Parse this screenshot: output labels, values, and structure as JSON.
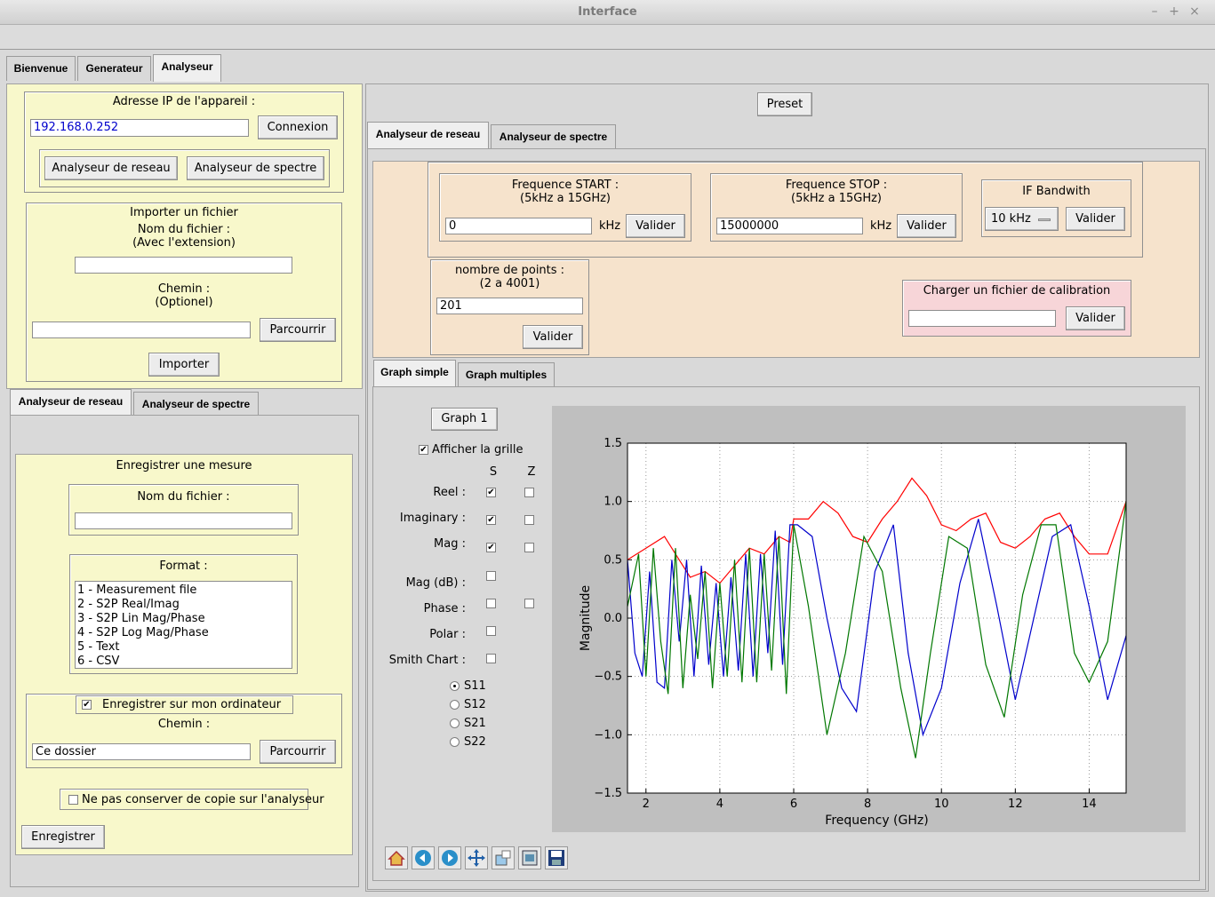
{
  "window": {
    "title": "Interface"
  },
  "main_tabs": [
    "Bienvenue",
    "Generateur",
    "Analyseur"
  ],
  "connection": {
    "label": "Adresse IP de l'appareil :",
    "ip": "192.168.0.252",
    "connect": "Connexion",
    "btn_network": "Analyseur de reseau",
    "btn_spectrum": "Analyseur de spectre"
  },
  "import": {
    "title": "Importer un fichier",
    "name_label": "Nom du fichier :",
    "name_hint": "(Avec l'extension)",
    "path_label": "Chemin :",
    "path_hint": "(Optionel)",
    "browse": "Parcourrir",
    "import_btn": "Importer"
  },
  "left_tabs": [
    "Analyseur de reseau",
    "Analyseur de spectre"
  ],
  "save": {
    "title": "Enregistrer une mesure",
    "name_label": "Nom du fichier :",
    "format_label": "Format :",
    "formats": [
      "1 - Measurement file",
      "2 - S2P Real/Imag",
      "3 - S2P Lin Mag/Phase",
      "4 - S2P Log Mag/Phase",
      "5 - Text",
      "6 - CSV"
    ],
    "save_local": "Enregistrer sur mon ordinateur",
    "path_label": "Chemin :",
    "path_value": "Ce dossier",
    "browse": "Parcourrir",
    "no_copy": "Ne pas conserver de copie sur l'analyseur",
    "save_btn": "Enregistrer"
  },
  "preset": "Preset",
  "right_tabs": [
    "Analyseur de reseau",
    "Analyseur de spectre"
  ],
  "freq_start": {
    "label": "Frequence START :",
    "hint": "(5kHz a 15GHz)",
    "value": "0",
    "unit": "kHz",
    "validate": "Valider"
  },
  "freq_stop": {
    "label": "Frequence STOP :",
    "hint": "(5kHz a 15GHz)",
    "value": "15000000",
    "unit": "kHz",
    "validate": "Valider"
  },
  "if_bw": {
    "label": "IF Bandwith",
    "value": "10 kHz",
    "validate": "Valider"
  },
  "points": {
    "label": "nombre de points :",
    "hint": "(2 a 4001)",
    "value": "201",
    "validate": "Valider"
  },
  "calib": {
    "label": "Charger un fichier de calibration",
    "validate": "Valider"
  },
  "graph_tabs": [
    "Graph simple",
    "Graph multiples"
  ],
  "graph_ctrl": {
    "graph_btn": "Graph 1",
    "grid_label": "Afficher la grille",
    "col_s": "S",
    "col_z": "Z",
    "rows": [
      {
        "label": "Reel :",
        "s": true,
        "z": false,
        "hasZ": true
      },
      {
        "label": "Imaginary :",
        "s": true,
        "z": false,
        "hasZ": true
      },
      {
        "label": "Mag :",
        "s": true,
        "z": false,
        "hasZ": true
      },
      {
        "label": "Mag (dB) :",
        "s": false,
        "hasZ": false
      },
      {
        "label": "Phase :",
        "s": false,
        "z": false,
        "hasZ": true
      },
      {
        "label": "Polar :",
        "s": false,
        "hasZ": false
      },
      {
        "label": "Smith Chart :",
        "s": false,
        "hasZ": false
      }
    ],
    "sparams": [
      "S11",
      "S12",
      "S21",
      "S22"
    ],
    "selected": "S11"
  },
  "chart_data": {
    "type": "line",
    "xlabel": "Frequency (GHz)",
    "ylabel": "Magnitude",
    "xlim": [
      1.5,
      15
    ],
    "ylim": [
      -1.5,
      1.5
    ],
    "xticks": [
      2,
      4,
      6,
      8,
      10,
      12,
      14
    ],
    "yticks": [
      1.5,
      1.0,
      0.5,
      0.0,
      -0.5,
      -1.0,
      -1.5
    ],
    "ytick_labels": [
      "1.5",
      "1.0",
      "0.5",
      "0.0",
      "−0.5",
      "−1.0",
      "−1.5"
    ],
    "grid": true,
    "series": [
      {
        "color": "#ff0000",
        "x": [
          1.5,
          2.0,
          2.5,
          2.8,
          3.2,
          3.6,
          4.0,
          4.4,
          4.8,
          5.2,
          5.6,
          5.9,
          6.0,
          6.4,
          6.8,
          7.2,
          7.6,
          8.0,
          8.4,
          8.8,
          9.2,
          9.6,
          10.0,
          10.4,
          10.8,
          11.2,
          11.6,
          12.0,
          12.4,
          12.8,
          13.2,
          13.6,
          14.0,
          14.5,
          15.0
        ],
        "y": [
          0.5,
          0.6,
          0.7,
          0.55,
          0.35,
          0.4,
          0.3,
          0.45,
          0.6,
          0.55,
          0.7,
          0.65,
          0.85,
          0.85,
          1.0,
          0.9,
          0.7,
          0.65,
          0.85,
          1.0,
          1.2,
          1.05,
          0.8,
          0.75,
          0.85,
          0.9,
          0.65,
          0.6,
          0.7,
          0.85,
          0.9,
          0.7,
          0.55,
          0.55,
          1.0
        ]
      },
      {
        "color": "#0000cc",
        "x": [
          1.5,
          1.7,
          1.9,
          2.1,
          2.3,
          2.5,
          2.7,
          2.9,
          3.1,
          3.3,
          3.5,
          3.7,
          3.9,
          4.1,
          4.3,
          4.5,
          4.7,
          4.9,
          5.1,
          5.3,
          5.5,
          5.7,
          5.9,
          6.1,
          6.5,
          6.9,
          7.3,
          7.7,
          8.2,
          8.7,
          9.1,
          9.5,
          10.0,
          10.5,
          11.0,
          11.5,
          12.0,
          12.5,
          13.0,
          13.5,
          14.0,
          14.5,
          15.0
        ],
        "y": [
          0.5,
          -0.3,
          -0.5,
          0.4,
          -0.55,
          -0.6,
          0.5,
          -0.2,
          0.5,
          -0.5,
          0.45,
          -0.4,
          0.3,
          -0.5,
          0.35,
          -0.45,
          0.55,
          -0.5,
          0.55,
          -0.3,
          0.75,
          -0.4,
          0.8,
          0.8,
          0.7,
          0.0,
          -0.6,
          -0.8,
          0.4,
          0.8,
          -0.3,
          -1.0,
          -0.6,
          0.3,
          0.85,
          0.1,
          -0.7,
          0.0,
          0.7,
          0.8,
          0.1,
          -0.7,
          -0.15
        ]
      },
      {
        "color": "#007700",
        "x": [
          1.5,
          1.8,
          2.0,
          2.2,
          2.4,
          2.6,
          2.8,
          3.0,
          3.2,
          3.4,
          3.6,
          3.8,
          4.0,
          4.2,
          4.4,
          4.6,
          4.8,
          5.0,
          5.2,
          5.4,
          5.6,
          5.8,
          6.0,
          6.4,
          6.9,
          7.4,
          7.9,
          8.4,
          8.9,
          9.3,
          9.7,
          10.2,
          10.7,
          11.2,
          11.7,
          12.2,
          12.7,
          13.1,
          13.6,
          14.0,
          14.5,
          15.0
        ],
        "y": [
          0.1,
          0.55,
          -0.5,
          0.6,
          -0.2,
          -0.65,
          0.6,
          -0.6,
          0.2,
          -0.35,
          0.4,
          -0.6,
          0.3,
          -0.5,
          0.5,
          -0.55,
          0.6,
          -0.55,
          0.55,
          -0.45,
          0.7,
          -0.65,
          0.8,
          0.1,
          -1.0,
          -0.3,
          0.7,
          0.4,
          -0.6,
          -1.2,
          -0.3,
          0.7,
          0.6,
          -0.4,
          -0.85,
          0.2,
          0.8,
          0.8,
          -0.3,
          -0.55,
          -0.2,
          1.0
        ]
      }
    ]
  }
}
